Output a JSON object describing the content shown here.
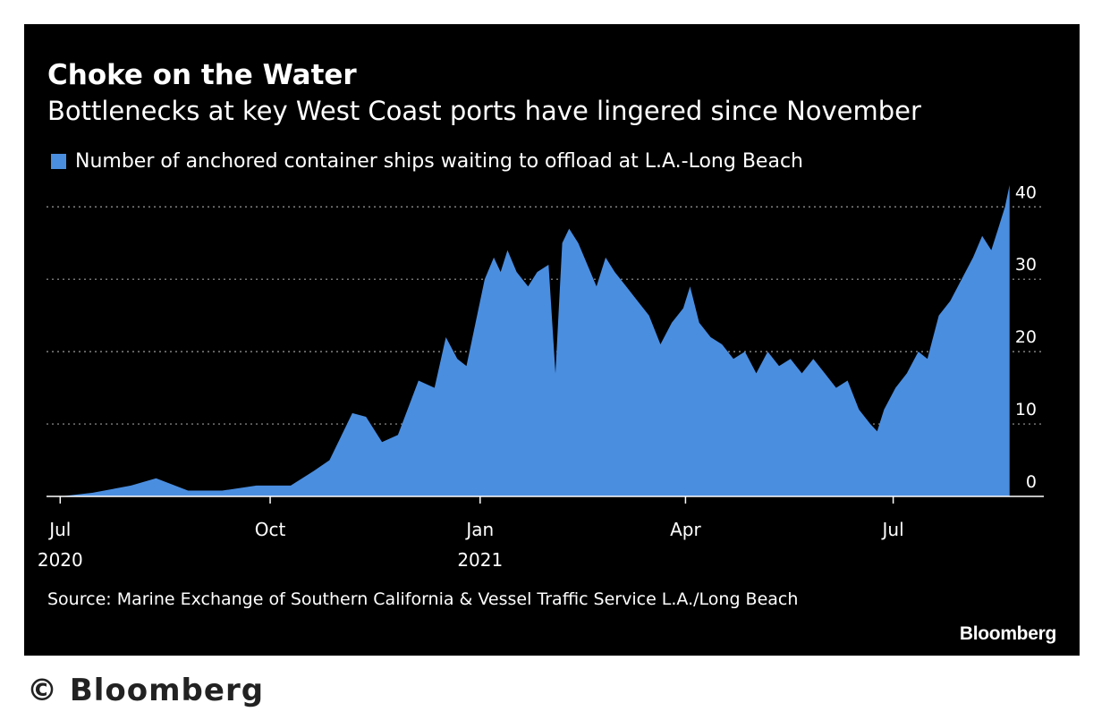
{
  "chart_data": {
    "type": "area",
    "title": "Choke on the Water",
    "subtitle": "Bottlenecks at key West Coast ports have lingered since November",
    "series": [
      {
        "name": "Number of anchored container ships waiting to offload at L.A.-Long Beach",
        "color": "#4a8ee0",
        "points": [
          [
            "2020-07-01",
            0
          ],
          [
            "2020-07-15",
            0.5
          ],
          [
            "2020-08-01",
            1.5
          ],
          [
            "2020-08-12",
            2.5
          ],
          [
            "2020-08-26",
            0.8
          ],
          [
            "2020-09-10",
            0.8
          ],
          [
            "2020-09-25",
            1.5
          ],
          [
            "2020-10-10",
            1.5
          ],
          [
            "2020-10-20",
            3.5
          ],
          [
            "2020-10-27",
            5
          ],
          [
            "2020-11-06",
            11.5
          ],
          [
            "2020-11-12",
            11
          ],
          [
            "2020-11-19",
            7.5
          ],
          [
            "2020-11-26",
            8.5
          ],
          [
            "2020-12-05",
            16
          ],
          [
            "2020-12-12",
            15
          ],
          [
            "2020-12-17",
            22
          ],
          [
            "2020-12-22",
            19
          ],
          [
            "2020-12-26",
            18
          ],
          [
            "2020-12-30",
            24
          ],
          [
            "2021-01-03",
            30
          ],
          [
            "2021-01-07",
            33
          ],
          [
            "2021-01-10",
            31
          ],
          [
            "2021-01-13",
            34
          ],
          [
            "2021-01-17",
            31
          ],
          [
            "2021-01-22",
            29
          ],
          [
            "2021-01-26",
            31
          ],
          [
            "2021-01-31",
            32
          ],
          [
            "2021-02-03",
            17
          ],
          [
            "2021-02-06",
            35
          ],
          [
            "2021-02-09",
            37
          ],
          [
            "2021-02-13",
            35
          ],
          [
            "2021-02-17",
            32
          ],
          [
            "2021-02-21",
            29
          ],
          [
            "2021-02-25",
            33
          ],
          [
            "2021-03-01",
            31
          ],
          [
            "2021-03-06",
            29
          ],
          [
            "2021-03-11",
            27
          ],
          [
            "2021-03-16",
            25
          ],
          [
            "2021-03-21",
            21
          ],
          [
            "2021-03-26",
            24
          ],
          [
            "2021-03-31",
            26
          ],
          [
            "2021-04-03",
            29
          ],
          [
            "2021-04-07",
            24
          ],
          [
            "2021-04-12",
            22
          ],
          [
            "2021-04-17",
            21
          ],
          [
            "2021-04-22",
            19
          ],
          [
            "2021-04-27",
            20
          ],
          [
            "2021-05-02",
            17
          ],
          [
            "2021-05-07",
            20
          ],
          [
            "2021-05-12",
            18
          ],
          [
            "2021-05-17",
            19
          ],
          [
            "2021-05-22",
            17
          ],
          [
            "2021-05-27",
            19
          ],
          [
            "2021-06-01",
            17
          ],
          [
            "2021-06-06",
            15
          ],
          [
            "2021-06-11",
            16
          ],
          [
            "2021-06-16",
            12
          ],
          [
            "2021-06-21",
            10
          ],
          [
            "2021-06-24",
            9
          ],
          [
            "2021-06-27",
            12
          ],
          [
            "2021-07-02",
            15
          ],
          [
            "2021-07-07",
            17
          ],
          [
            "2021-07-12",
            20
          ],
          [
            "2021-07-16",
            19
          ],
          [
            "2021-07-21",
            25
          ],
          [
            "2021-07-26",
            27
          ],
          [
            "2021-07-31",
            30
          ],
          [
            "2021-08-05",
            33
          ],
          [
            "2021-08-09",
            36
          ],
          [
            "2021-08-13",
            34
          ],
          [
            "2021-08-16",
            37
          ],
          [
            "2021-08-19",
            40
          ],
          [
            "2021-08-21",
            43
          ]
        ]
      }
    ],
    "xaxis": {
      "type": "date",
      "min": "2020-06-25",
      "max": "2021-09-05",
      "ticks": [
        {
          "value": "2020-07-01",
          "label": "Jul",
          "sublabel": "2020"
        },
        {
          "value": "2020-10-01",
          "label": "Oct",
          "sublabel": ""
        },
        {
          "value": "2021-01-01",
          "label": "Jan",
          "sublabel": "2021"
        },
        {
          "value": "2021-04-01",
          "label": "Apr",
          "sublabel": ""
        },
        {
          "value": "2021-07-01",
          "label": "Jul",
          "sublabel": ""
        }
      ]
    },
    "yaxis": {
      "min": 0,
      "max": 43,
      "position": "right",
      "ticks": [
        {
          "value": 0,
          "label": "0"
        },
        {
          "value": 10,
          "label": "10"
        },
        {
          "value": 20,
          "label": "20"
        },
        {
          "value": 30,
          "label": "30"
        },
        {
          "value": 40,
          "label": "40"
        }
      ]
    },
    "grid": true,
    "legend_position": "top-left",
    "source": "Source: Marine Exchange of Southern California & Vessel Traffic Service L.A./Long Beach",
    "logo_text": "Bloomberg",
    "background": "#000000",
    "text_color": "#ffffff",
    "grid_color": "#9a9a9a"
  },
  "footer": {
    "copyright": "© Bloomberg"
  }
}
